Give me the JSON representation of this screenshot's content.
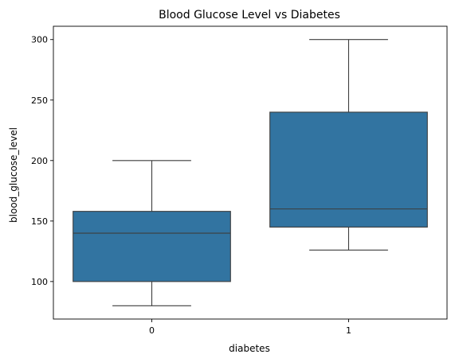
{
  "chart_data": {
    "type": "boxplot",
    "title": "Blood Glucose Level vs Diabetes",
    "xlabel": "diabetes",
    "ylabel": "blood_glucose_level",
    "categories": [
      "0",
      "1"
    ],
    "boxes": [
      {
        "category": "0",
        "whisker_low": 80,
        "q1": 100,
        "median": 140,
        "q3": 158,
        "whisker_high": 200
      },
      {
        "category": "1",
        "whisker_low": 126,
        "q1": 145,
        "median": 160,
        "q3": 240,
        "whisker_high": 300
      }
    ],
    "ylim": [
      69,
      311
    ],
    "yticks": [
      100,
      150,
      200,
      250,
      300
    ],
    "box_color": "#3274a1",
    "line_color": "#3d3d3d"
  }
}
